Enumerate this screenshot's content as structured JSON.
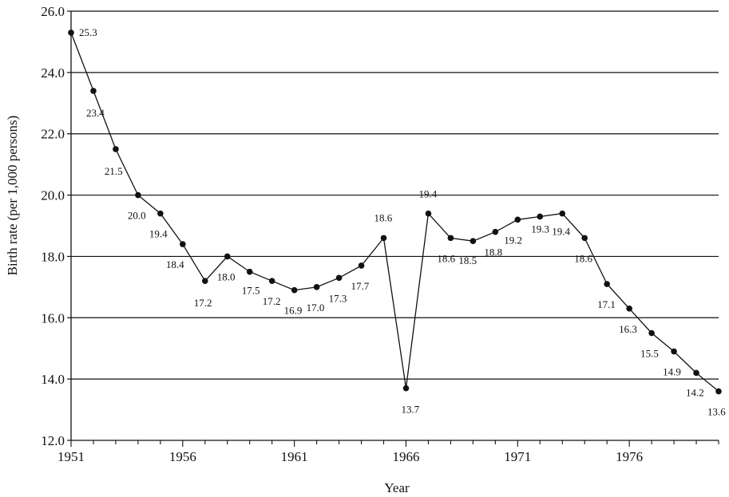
{
  "chart_data": {
    "type": "line",
    "xlabel": "Year",
    "ylabel": "Birth rate (per 1,000 persons)",
    "xlim": [
      1951,
      1980
    ],
    "ylim": [
      12.0,
      26.0
    ],
    "x_ticks": [
      1951,
      1956,
      1961,
      1966,
      1971,
      1976
    ],
    "y_ticks": [
      12.0,
      14.0,
      16.0,
      18.0,
      20.0,
      22.0,
      24.0,
      26.0
    ],
    "y_tick_labels": [
      "12.0",
      "14.0",
      "16.0",
      "18.0",
      "20.0",
      "22.0",
      "24.0",
      "26.0"
    ],
    "grid": "horizontal",
    "series": [
      {
        "x": [
          1951,
          1952,
          1953,
          1954,
          1955,
          1956,
          1957,
          1958,
          1959,
          1960,
          1961,
          1962,
          1963,
          1964,
          1965,
          1966,
          1967,
          1968,
          1969,
          1970,
          1971,
          1972,
          1973,
          1974,
          1975,
          1976,
          1977,
          1978,
          1979,
          1980
        ],
        "values": [
          25.3,
          23.4,
          21.5,
          20.0,
          19.4,
          18.4,
          17.2,
          18.0,
          17.5,
          17.2,
          16.9,
          17.0,
          17.3,
          17.7,
          18.6,
          13.7,
          19.4,
          18.6,
          18.5,
          18.8,
          19.2,
          19.3,
          19.4,
          18.6,
          17.1,
          16.3,
          15.5,
          14.9,
          14.2,
          13.6
        ],
        "labels": [
          "25.3",
          "23.4",
          "21.5",
          "20.0",
          "19.4",
          "18.4",
          "17.2",
          "18.0",
          "17.5",
          "17.2",
          "16.9",
          "17.0",
          "17.3",
          "17.7",
          "18.6",
          "13.7",
          "19.4",
          "18.6",
          "18.5",
          "18.8",
          "19.2",
          "19.3",
          "19.4",
          "18.6",
          "17.1",
          "16.3",
          "15.5",
          "14.9",
          "14.2",
          "13.6"
        ]
      }
    ]
  }
}
